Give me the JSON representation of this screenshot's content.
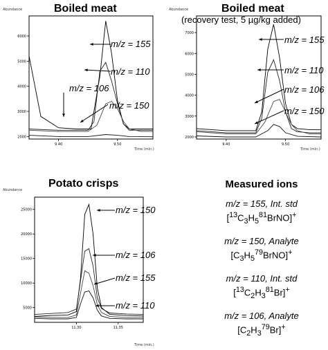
{
  "panels": [
    {
      "title": "Boiled meat",
      "subtitle": "",
      "ylabel": "Abundance",
      "xlabel": "Time (min.)",
      "xticks": [
        "9.40",
        "9.50"
      ],
      "yticks": [
        "6000",
        "5000",
        "4000",
        "3000",
        "2000"
      ],
      "ions": [
        "m/z = 155",
        "m/z = 110",
        "m/z = 106",
        "m/z = 150"
      ]
    },
    {
      "title": "Boiled meat",
      "subtitle": "(recovery test, 5 µg/kg added)",
      "ylabel": "Abundance",
      "xlabel": "Time (min.)",
      "xticks": [
        "9.40",
        "9.50"
      ],
      "yticks": [
        "7000",
        "6000",
        "5000",
        "4000",
        "3000",
        "2000"
      ],
      "ions": [
        "m/z = 155",
        "m/z = 110",
        "m/z = 106",
        "m/z = 150"
      ]
    },
    {
      "title": "Potato crisps",
      "subtitle": "",
      "ylabel": "Abundance",
      "xlabel": "Time (min.)",
      "xticks": [
        "11.30",
        "11.35"
      ],
      "yticks": [
        "25000",
        "20000",
        "15000",
        "10000",
        "5000"
      ],
      "ions": [
        "m/z = 150",
        "m/z = 106",
        "m/z = 155",
        "m/z = 110"
      ]
    }
  ],
  "legend": {
    "title": "Measured ions",
    "entries": [
      {
        "line1": "m/z = 155, Int. std",
        "line2": "[13C3H581BrNO]+"
      },
      {
        "line1": "m/z = 150, Analyte",
        "line2": "[C3H579BrNO]+"
      },
      {
        "line1": "m/z = 110, Int. std",
        "line2": "[13C2H381Br]+"
      },
      {
        "line1": "m/z = 106, Analyte",
        "line2": "[C2H379Br]+"
      }
    ]
  },
  "chart_data": [
    {
      "type": "line",
      "title": "Boiled meat",
      "xlabel": "Time (min.)",
      "ylabel": "Abundance",
      "xlim": [
        9.35,
        9.56
      ],
      "ylim": [
        1900,
        6800
      ],
      "series": [
        {
          "name": "m/z = 155",
          "x": [
            9.35,
            9.37,
            9.4,
            9.43,
            9.455,
            9.47,
            9.48,
            9.49,
            9.5,
            9.51,
            9.52,
            9.54,
            9.56
          ],
          "y": [
            5200,
            2800,
            2350,
            2300,
            2300,
            4400,
            6600,
            5300,
            3400,
            2500,
            2300,
            2300,
            2300
          ]
        },
        {
          "name": "m/z = 110",
          "x": [
            9.35,
            9.4,
            9.45,
            9.46,
            9.47,
            9.48,
            9.49,
            9.5,
            9.51,
            9.52,
            9.54,
            9.56
          ],
          "y": [
            2300,
            2250,
            2250,
            2600,
            4600,
            4950,
            4200,
            3300,
            2500,
            2250,
            2250,
            2250
          ]
        },
        {
          "name": "m/z = 106",
          "x": [
            9.35,
            9.4,
            9.45,
            9.465,
            9.48,
            9.49,
            9.5,
            9.51,
            9.52,
            9.54,
            9.56
          ],
          "y": [
            2250,
            2200,
            2200,
            2450,
            3300,
            3400,
            3100,
            2600,
            2300,
            2200,
            2200
          ]
        },
        {
          "name": "m/z = 150",
          "x": [
            9.35,
            9.4,
            9.45,
            9.48,
            9.5,
            9.52,
            9.56
          ],
          "y": [
            2050,
            2000,
            2000,
            2080,
            2050,
            2000,
            1990
          ]
        }
      ]
    },
    {
      "type": "line",
      "title": "Boiled meat",
      "subtitle": "(recovery test, 5 µg/kg added)",
      "xlabel": "Time (min.)",
      "ylabel": "Abundance",
      "xlim": [
        9.35,
        9.56
      ],
      "ylim": [
        1900,
        7800
      ],
      "series": [
        {
          "name": "m/z = 155",
          "x": [
            9.35,
            9.4,
            9.45,
            9.46,
            9.47,
            9.48,
            9.49,
            9.5,
            9.51,
            9.52,
            9.54,
            9.56
          ],
          "y": [
            2400,
            2300,
            2300,
            3200,
            6200,
            7400,
            5800,
            3600,
            2600,
            2400,
            2350,
            2350
          ]
        },
        {
          "name": "m/z = 110",
          "x": [
            9.35,
            9.4,
            9.45,
            9.46,
            9.47,
            9.48,
            9.49,
            9.5,
            9.51,
            9.52,
            9.54,
            9.56
          ],
          "y": [
            2300,
            2200,
            2200,
            2900,
            5100,
            5700,
            4700,
            3200,
            2400,
            2250,
            2200,
            2200
          ]
        },
        {
          "name": "m/z = 106",
          "x": [
            9.35,
            9.4,
            9.45,
            9.465,
            9.48,
            9.49,
            9.5,
            9.51,
            9.52,
            9.54,
            9.56
          ],
          "y": [
            2250,
            2150,
            2150,
            2700,
            3700,
            3800,
            3200,
            2600,
            2300,
            2150,
            2150
          ]
        },
        {
          "name": "m/z = 150",
          "x": [
            9.35,
            9.4,
            9.45,
            9.47,
            9.48,
            9.49,
            9.5,
            9.52,
            9.56
          ],
          "y": [
            2050,
            2000,
            2000,
            2300,
            2600,
            2500,
            2200,
            2030,
            2000
          ]
        }
      ]
    },
    {
      "type": "line",
      "title": "Potato crisps",
      "xlabel": "Time (min.)",
      "ylabel": "Abundance",
      "xlim": [
        11.25,
        11.38
      ],
      "ylim": [
        2000,
        27500
      ],
      "series": [
        {
          "name": "m/z = 150",
          "x": [
            11.25,
            11.27,
            11.29,
            11.3,
            11.305,
            11.31,
            11.315,
            11.32,
            11.325,
            11.33,
            11.34,
            11.36,
            11.38
          ],
          "y": [
            3200,
            3400,
            3500,
            4200,
            11000,
            24000,
            26000,
            20000,
            9000,
            5000,
            3600,
            3400,
            3300
          ]
        },
        {
          "name": "m/z = 106",
          "x": [
            11.25,
            11.27,
            11.29,
            11.3,
            11.305,
            11.31,
            11.315,
            11.32,
            11.325,
            11.33,
            11.34,
            11.36,
            11.38
          ],
          "y": [
            3600,
            3800,
            4000,
            4700,
            10500,
            16500,
            17000,
            13500,
            7000,
            4800,
            3900,
            3700,
            3600
          ]
        },
        {
          "name": "m/z = 155",
          "x": [
            11.25,
            11.27,
            11.29,
            11.3,
            11.305,
            11.31,
            11.315,
            11.32,
            11.325,
            11.33,
            11.34,
            11.36,
            11.38
          ],
          "y": [
            3100,
            3000,
            3000,
            3500,
            8000,
            12500,
            12000,
            9500,
            5600,
            4000,
            3200,
            3000,
            3000
          ]
        },
        {
          "name": "m/z = 110",
          "x": [
            11.25,
            11.27,
            11.29,
            11.3,
            11.305,
            11.31,
            11.315,
            11.32,
            11.325,
            11.33,
            11.34,
            11.36,
            11.38
          ],
          "y": [
            2800,
            2700,
            2700,
            3000,
            5800,
            8200,
            8400,
            7000,
            4500,
            3300,
            2800,
            2700,
            2700
          ]
        }
      ]
    }
  ]
}
